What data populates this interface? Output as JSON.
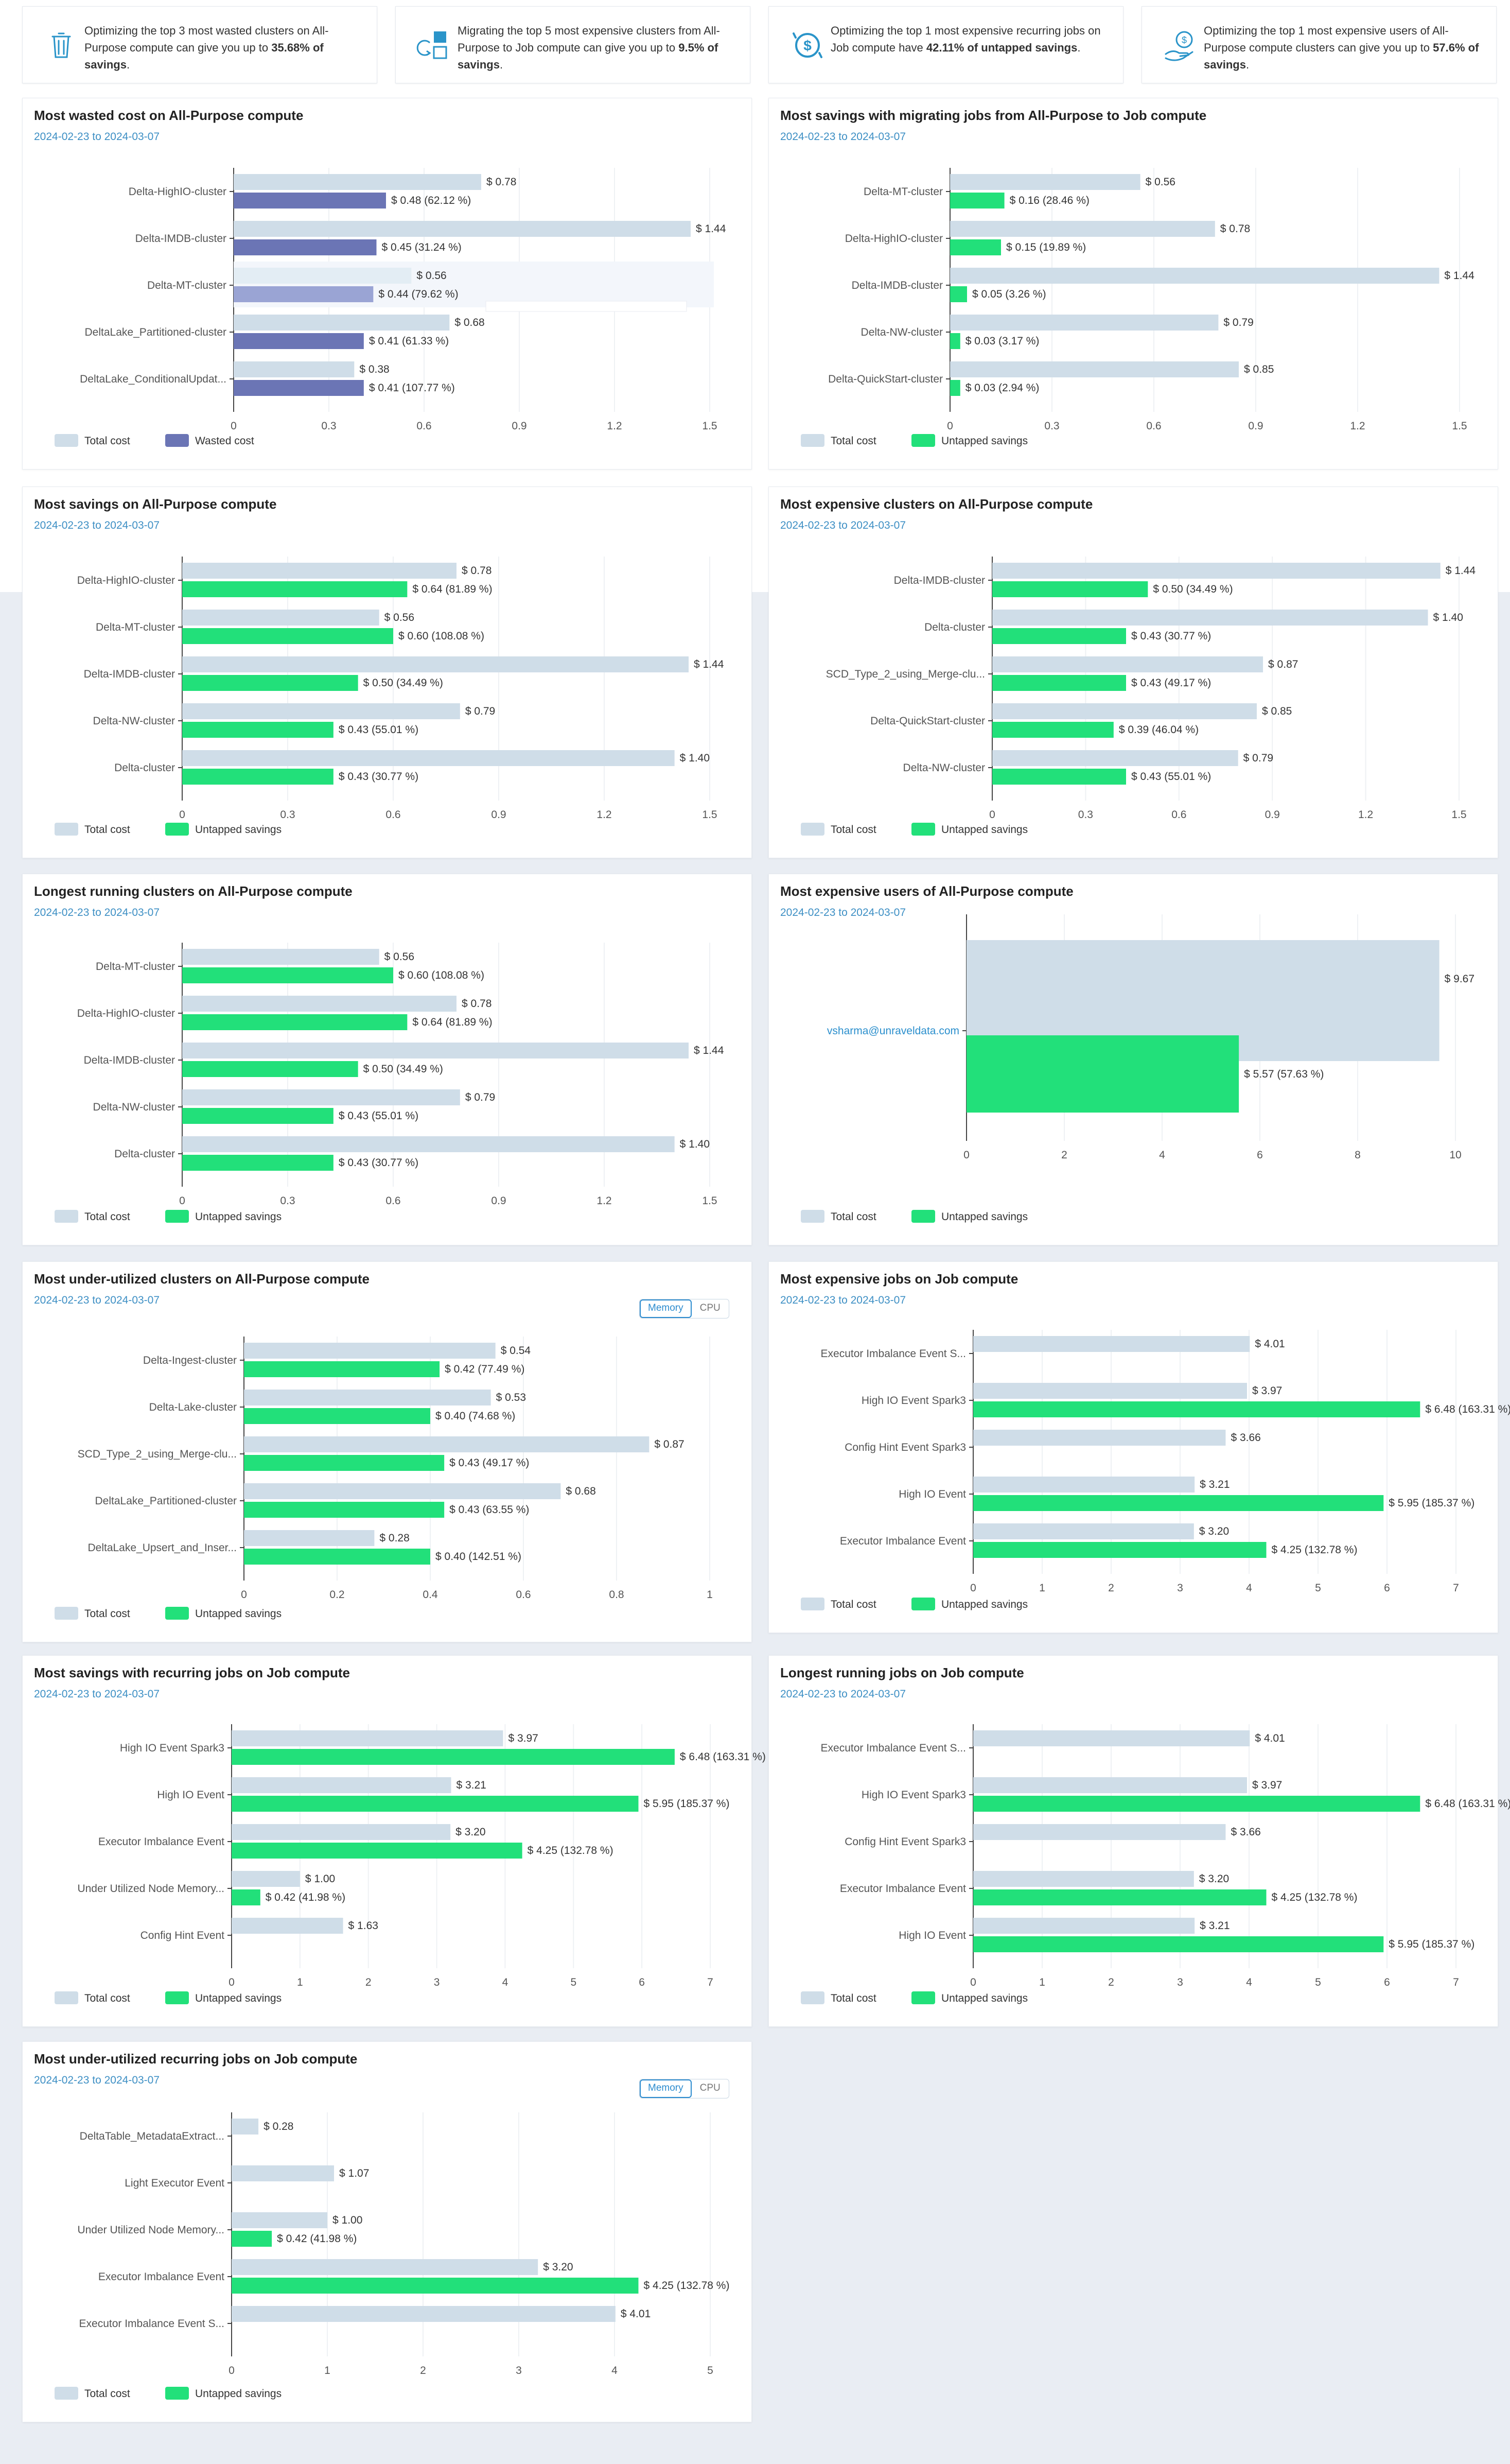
{
  "colors": {
    "total": "#cfdde8",
    "wasted": "#6b75b5",
    "wasted_highlight": "#9aa4d4",
    "total_highlight": "#e3edf4",
    "untapped": "#22e07a",
    "date": "#3d8fc4",
    "insight_icon": "#2a94c9"
  },
  "insights": [
    {
      "icon": "trash-icon",
      "pre": "Optimizing the top 3 most wasted clusters on All-Purpose compute can give you up to ",
      "strong": "35.68% of savings",
      "post": "."
    },
    {
      "icon": "migrate-icon",
      "pre": "Migrating the top 5 most expensive clusters from All-Purpose to Job compute can give you up to ",
      "strong": "9.5% of savings",
      "post": "."
    },
    {
      "icon": "dollar-cycle-icon",
      "pre": "Optimizing the top 1 most expensive recurring jobs on Job compute have ",
      "strong": "42.11% of untapped savings",
      "post": "."
    },
    {
      "icon": "hand-dollar-icon",
      "pre": "Optimizing the top 1 most expensive users of All-Purpose compute clusters can give you up to ",
      "strong": "57.6% of savings",
      "post": "."
    }
  ],
  "charts": [
    {
      "id": "wasted",
      "title": "Most wasted cost on All-Purpose compute",
      "date_range": "2024-02-23 to 2024-03-07",
      "chart_data": {
        "type": "bar",
        "orientation": "horizontal",
        "categories": [
          "Delta-HighIO-cluster",
          "Delta-IMDB-cluster",
          "Delta-MT-cluster",
          "DeltaLake_Partitioned-cluster",
          "DeltaLake_ConditionalUpdat..."
        ],
        "series": [
          {
            "name": "Total cost",
            "values": [
              0.78,
              1.44,
              0.56,
              0.68,
              0.38
            ],
            "labels": [
              "$ 0.78",
              "$ 1.44",
              "$ 0.56",
              "$ 0.68",
              "$ 0.38"
            ]
          },
          {
            "name": "Wasted cost",
            "values": [
              0.48,
              0.45,
              0.44,
              0.41,
              0.41
            ],
            "labels": [
              "$ 0.48 (62.12 %)",
              "$ 0.45 (31.24 %)",
              "$ 0.44 (79.62 %)",
              "$ 0.41 (61.33 %)",
              "$ 0.41 (107.77 %)"
            ]
          }
        ],
        "xticks": [
          "0",
          "0.3",
          "0.6",
          "0.9",
          "1.2",
          "1.5"
        ],
        "xlim": [
          0,
          1.5
        ],
        "highlight_index": 2
      }
    },
    {
      "id": "migrate",
      "title": "Most savings with migrating jobs from All-Purpose to Job compute",
      "date_range": "2024-02-23 to 2024-03-07",
      "chart_data": {
        "type": "bar",
        "orientation": "horizontal",
        "categories": [
          "Delta-MT-cluster",
          "Delta-HighIO-cluster",
          "Delta-IMDB-cluster",
          "Delta-NW-cluster",
          "Delta-QuickStart-cluster"
        ],
        "series": [
          {
            "name": "Total cost",
            "values": [
              0.56,
              0.78,
              1.44,
              0.79,
              0.85
            ],
            "labels": [
              "$ 0.56",
              "$ 0.78",
              "$ 1.44",
              "$ 0.79",
              "$ 0.85"
            ]
          },
          {
            "name": "Untapped savings",
            "values": [
              0.16,
              0.15,
              0.05,
              0.03,
              0.03
            ],
            "labels": [
              "$ 0.16 (28.46 %)",
              "$ 0.15 (19.89 %)",
              "$ 0.05 (3.26 %)",
              "$ 0.03 (3.17 %)",
              "$ 0.03 (2.94 %)"
            ]
          }
        ],
        "xticks": [
          "0",
          "0.3",
          "0.6",
          "0.9",
          "1.2",
          "1.5"
        ],
        "xlim": [
          0,
          1.5
        ]
      }
    },
    {
      "id": "savings_ap",
      "title": "Most savings on All-Purpose compute",
      "date_range": "2024-02-23 to 2024-03-07",
      "chart_data": {
        "type": "bar",
        "orientation": "horizontal",
        "categories": [
          "Delta-HighIO-cluster",
          "Delta-MT-cluster",
          "Delta-IMDB-cluster",
          "Delta-NW-cluster",
          "Delta-cluster"
        ],
        "series": [
          {
            "name": "Total cost",
            "values": [
              0.78,
              0.56,
              1.44,
              0.79,
              1.4
            ],
            "labels": [
              "$ 0.78",
              "$ 0.56",
              "$ 1.44",
              "$ 0.79",
              "$ 1.40"
            ]
          },
          {
            "name": "Untapped savings",
            "values": [
              0.64,
              0.6,
              0.5,
              0.43,
              0.43
            ],
            "labels": [
              "$ 0.64 (81.89 %)",
              "$ 0.60 (108.08 %)",
              "$ 0.50 (34.49 %)",
              "$ 0.43 (55.01 %)",
              "$ 0.43 (30.77 %)"
            ]
          }
        ],
        "xticks": [
          "0",
          "0.3",
          "0.6",
          "0.9",
          "1.2",
          "1.5"
        ],
        "xlim": [
          0,
          1.5
        ]
      }
    },
    {
      "id": "expensive_ap",
      "title": "Most expensive clusters on All-Purpose compute",
      "date_range": "2024-02-23 to 2024-03-07",
      "chart_data": {
        "type": "bar",
        "orientation": "horizontal",
        "categories": [
          "Delta-IMDB-cluster",
          "Delta-cluster",
          "SCD_Type_2_using_Merge-clu...",
          "Delta-QuickStart-cluster",
          "Delta-NW-cluster"
        ],
        "series": [
          {
            "name": "Total cost",
            "values": [
              1.44,
              1.4,
              0.87,
              0.85,
              0.79
            ],
            "labels": [
              "$ 1.44",
              "$ 1.40",
              "$ 0.87",
              "$ 0.85",
              "$ 0.79"
            ]
          },
          {
            "name": "Untapped savings",
            "values": [
              0.5,
              0.43,
              0.43,
              0.39,
              0.43
            ],
            "labels": [
              "$ 0.50 (34.49 %)",
              "$ 0.43 (30.77 %)",
              "$ 0.43 (49.17 %)",
              "$ 0.39 (46.04 %)",
              "$ 0.43 (55.01 %)"
            ]
          }
        ],
        "xticks": [
          "0",
          "0.3",
          "0.6",
          "0.9",
          "1.2",
          "1.5"
        ],
        "xlim": [
          0,
          1.5
        ]
      }
    },
    {
      "id": "longest_ap",
      "title": "Longest running clusters on All-Purpose compute",
      "date_range": "2024-02-23 to 2024-03-07",
      "chart_data": {
        "type": "bar",
        "orientation": "horizontal",
        "categories": [
          "Delta-MT-cluster",
          "Delta-HighIO-cluster",
          "Delta-IMDB-cluster",
          "Delta-NW-cluster",
          "Delta-cluster"
        ],
        "series": [
          {
            "name": "Total cost",
            "values": [
              0.56,
              0.78,
              1.44,
              0.79,
              1.4
            ],
            "labels": [
              "$ 0.56",
              "$ 0.78",
              "$ 1.44",
              "$ 0.79",
              "$ 1.40"
            ]
          },
          {
            "name": "Untapped savings",
            "values": [
              0.6,
              0.64,
              0.5,
              0.43,
              0.43
            ],
            "labels": [
              "$ 0.60 (108.08 %)",
              "$ 0.64 (81.89 %)",
              "$ 0.50 (34.49 %)",
              "$ 0.43 (55.01 %)",
              "$ 0.43 (30.77 %)"
            ]
          }
        ],
        "xticks": [
          "0",
          "0.3",
          "0.6",
          "0.9",
          "1.2",
          "1.5"
        ],
        "xlim": [
          0,
          1.5
        ]
      }
    },
    {
      "id": "users_ap",
      "title": "Most expensive users of All-Purpose compute",
      "date_range": "2024-02-23 to 2024-03-07",
      "chart_data": {
        "type": "bar",
        "orientation": "horizontal",
        "link_labels": true,
        "categories": [
          "vsharma@unraveldata.com"
        ],
        "series": [
          {
            "name": "Total cost",
            "values": [
              9.67
            ],
            "labels": [
              "$ 9.67"
            ]
          },
          {
            "name": "Untapped savings",
            "values": [
              5.57
            ],
            "labels": [
              "$ 5.57 (57.63 %)"
            ]
          }
        ],
        "xticks": [
          "0",
          "2",
          "4",
          "6",
          "8",
          "10"
        ],
        "xlim": [
          0,
          10
        ]
      }
    },
    {
      "id": "underutil_ap",
      "title": "Most under-utilized clusters on All-Purpose compute",
      "date_range": "2024-02-23 to 2024-03-07",
      "toggle": {
        "options": [
          "Memory",
          "CPU"
        ],
        "active": "Memory"
      },
      "chart_data": {
        "type": "bar",
        "orientation": "horizontal",
        "categories": [
          "Delta-Ingest-cluster",
          "Delta-Lake-cluster",
          "SCD_Type_2_using_Merge-clu...",
          "DeltaLake_Partitioned-cluster",
          "DeltaLake_Upsert_and_Inser..."
        ],
        "series": [
          {
            "name": "Total cost",
            "values": [
              0.54,
              0.53,
              0.87,
              0.68,
              0.28
            ],
            "labels": [
              "$ 0.54",
              "$ 0.53",
              "$ 0.87",
              "$ 0.68",
              "$ 0.28"
            ]
          },
          {
            "name": "Untapped savings",
            "values": [
              0.42,
              0.4,
              0.43,
              0.43,
              0.4
            ],
            "labels": [
              "$ 0.42 (77.49 %)",
              "$ 0.40 (74.68 %)",
              "$ 0.43 (49.17 %)",
              "$ 0.43 (63.55 %)",
              "$ 0.40 (142.51 %)"
            ]
          }
        ],
        "xticks": [
          "0",
          "0.2",
          "0.4",
          "0.6",
          "0.8",
          "1"
        ],
        "xlim": [
          0,
          1
        ]
      }
    },
    {
      "id": "expensive_jobs",
      "title": "Most expensive jobs on Job compute",
      "date_range": "2024-02-23 to 2024-03-07",
      "chart_data": {
        "type": "bar",
        "orientation": "horizontal",
        "categories": [
          "Executor Imbalance Event S...",
          "High IO Event Spark3",
          "Config Hint Event Spark3",
          "High IO Event",
          "Executor Imbalance Event"
        ],
        "series": [
          {
            "name": "Total cost",
            "values": [
              4.01,
              3.97,
              3.66,
              3.21,
              3.2
            ],
            "labels": [
              "$ 4.01",
              "$ 3.97",
              "$ 3.66",
              "$ 3.21",
              "$ 3.20"
            ]
          },
          {
            "name": "Untapped savings",
            "values": [
              null,
              6.48,
              null,
              5.95,
              4.25
            ],
            "labels": [
              null,
              "$ 6.48 (163.31 %)",
              null,
              "$ 5.95 (185.37 %)",
              "$ 4.25 (132.78 %)"
            ]
          }
        ],
        "xticks": [
          "0",
          "1",
          "2",
          "3",
          "4",
          "5",
          "6",
          "7"
        ],
        "xlim": [
          0,
          7
        ]
      }
    },
    {
      "id": "recurring_jobs",
      "title": "Most savings with recurring jobs on Job compute",
      "date_range": "2024-02-23 to 2024-03-07",
      "chart_data": {
        "type": "bar",
        "orientation": "horizontal",
        "categories": [
          "High IO Event Spark3",
          "High IO Event",
          "Executor Imbalance Event",
          "Under Utilized Node Memory...",
          "Config Hint Event"
        ],
        "series": [
          {
            "name": "Total cost",
            "values": [
              3.97,
              3.21,
              3.2,
              1.0,
              1.63
            ],
            "labels": [
              "$ 3.97",
              "$ 3.21",
              "$ 3.20",
              "$ 1.00",
              "$ 1.63"
            ]
          },
          {
            "name": "Untapped savings",
            "values": [
              6.48,
              5.95,
              4.25,
              0.42,
              null
            ],
            "labels": [
              "$ 6.48 (163.31 %)",
              "$ 5.95 (185.37 %)",
              "$ 4.25 (132.78 %)",
              "$ 0.42 (41.98 %)",
              null
            ]
          }
        ],
        "xticks": [
          "0",
          "1",
          "2",
          "3",
          "4",
          "5",
          "6",
          "7"
        ],
        "xlim": [
          0,
          7
        ]
      }
    },
    {
      "id": "longest_jobs",
      "title": "Longest running jobs on Job compute",
      "date_range": "2024-02-23 to 2024-03-07",
      "chart_data": {
        "type": "bar",
        "orientation": "horizontal",
        "categories": [
          "Executor Imbalance Event S...",
          "High IO Event Spark3",
          "Config Hint Event Spark3",
          "Executor Imbalance Event",
          "High IO Event"
        ],
        "series": [
          {
            "name": "Total cost",
            "values": [
              4.01,
              3.97,
              3.66,
              3.2,
              3.21
            ],
            "labels": [
              "$ 4.01",
              "$ 3.97",
              "$ 3.66",
              "$ 3.20",
              "$ 3.21"
            ]
          },
          {
            "name": "Untapped savings",
            "values": [
              null,
              6.48,
              null,
              4.25,
              5.95
            ],
            "labels": [
              null,
              "$ 6.48 (163.31 %)",
              null,
              "$ 4.25 (132.78 %)",
              "$ 5.95 (185.37 %)"
            ]
          }
        ],
        "xticks": [
          "0",
          "1",
          "2",
          "3",
          "4",
          "5",
          "6",
          "7"
        ],
        "xlim": [
          0,
          7
        ]
      }
    },
    {
      "id": "underutil_jobs",
      "title": "Most under-utilized recurring jobs on Job compute",
      "date_range": "2024-02-23 to 2024-03-07",
      "toggle": {
        "options": [
          "Memory",
          "CPU"
        ],
        "active": "Memory"
      },
      "chart_data": {
        "type": "bar",
        "orientation": "horizontal",
        "categories": [
          "DeltaTable_MetadataExtract...",
          "Light Executor Event",
          "Under Utilized Node Memory...",
          "Executor Imbalance Event",
          "Executor Imbalance Event S..."
        ],
        "series": [
          {
            "name": "Total cost",
            "values": [
              0.28,
              1.07,
              1.0,
              3.2,
              4.01
            ],
            "labels": [
              "$ 0.28",
              "$ 1.07",
              "$ 1.00",
              "$ 3.20",
              "$ 4.01"
            ]
          },
          {
            "name": "Untapped savings",
            "values": [
              null,
              null,
              0.42,
              4.25,
              null
            ],
            "labels": [
              null,
              null,
              "$ 0.42 (41.98 %)",
              "$ 4.25 (132.78 %)",
              null
            ]
          }
        ],
        "xticks": [
          "0",
          "1",
          "2",
          "3",
          "4",
          "5"
        ],
        "xlim": [
          0,
          5
        ]
      }
    }
  ]
}
